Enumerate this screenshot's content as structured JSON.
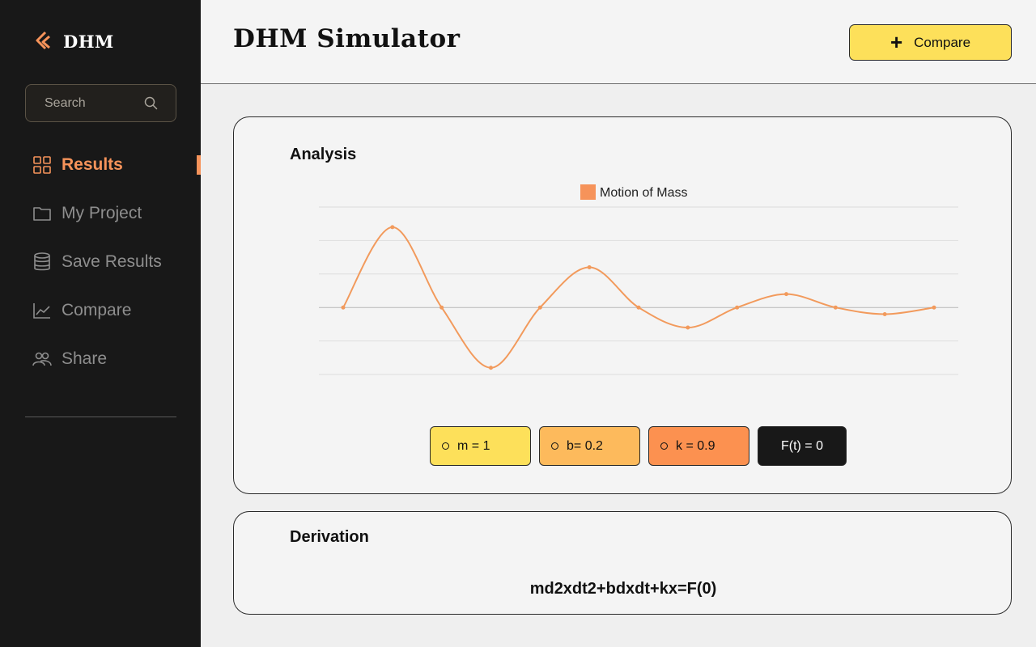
{
  "app": {
    "name": "DHM",
    "title": "DHM  Simulator"
  },
  "search": {
    "placeholder": "Search"
  },
  "sidebar": {
    "items": [
      {
        "label": "Results",
        "icon": "grid-icon",
        "active": true
      },
      {
        "label": "My Project",
        "icon": "folder-icon",
        "active": false
      },
      {
        "label": "Save Results",
        "icon": "database-icon",
        "active": false
      },
      {
        "label": "Compare",
        "icon": "line-chart-icon",
        "active": false
      },
      {
        "label": "Share",
        "icon": "users-icon",
        "active": false
      }
    ]
  },
  "header": {
    "compare_label": "Compare"
  },
  "analysis": {
    "title": "Analysis",
    "params": {
      "m": "m = 1",
      "b": "b= 0.2",
      "k": "k = 0.9",
      "f": "F(t) = 0"
    }
  },
  "chart_data": {
    "type": "line",
    "title": "",
    "legend": "Motion of Mass",
    "legend_position": "top-center",
    "grid": true,
    "ylim": [
      -1,
      1.5
    ],
    "series": [
      {
        "name": "Motion of Mass",
        "color": "#f29a5c",
        "values": [
          0,
          1.2,
          0,
          -0.9,
          0,
          0.6,
          0,
          -0.3,
          0,
          0.2,
          0,
          -0.1,
          0
        ]
      }
    ]
  },
  "derivation": {
    "title": "Derivation",
    "equation": "md2xdt2+bdxdt+kx=F(0)"
  },
  "colors": {
    "accent": "#f6935a",
    "sidebar_bg": "#181818",
    "yellow": "#fde05a",
    "light_orange": "#fdba5c",
    "orange": "#fc9150"
  }
}
